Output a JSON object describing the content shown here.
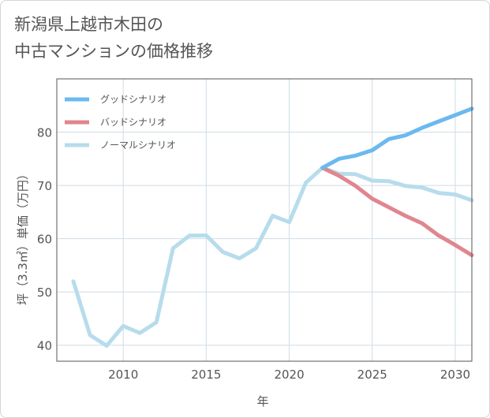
{
  "title": {
    "line1": "新潟県上越市木田の",
    "line2": "中古マンションの価格推移"
  },
  "chart_data": {
    "type": "line",
    "xlabel": "年",
    "ylabel": "坪（3.3㎡）単価（万円）",
    "xlim": [
      2006,
      2031
    ],
    "ylim": [
      37,
      90
    ],
    "x_ticks": [
      2010,
      2015,
      2020,
      2025,
      2030
    ],
    "y_ticks": [
      40,
      50,
      60,
      70,
      80
    ],
    "grid": true,
    "legend_position": "top-left",
    "series": [
      {
        "name": "グッドシナリオ",
        "color": "#6bb9ef",
        "x": [
          2022,
          2023,
          2024,
          2025,
          2026,
          2027,
          2028,
          2029,
          2030,
          2031
        ],
        "y": [
          73.3,
          75.0,
          75.6,
          76.6,
          78.7,
          79.4,
          80.8,
          82.0,
          83.2,
          84.4
        ]
      },
      {
        "name": "バッドシナリオ",
        "color": "#e0868f",
        "x": [
          2022,
          2023,
          2024,
          2025,
          2026,
          2027,
          2028,
          2029,
          2030,
          2031
        ],
        "y": [
          73.3,
          71.8,
          69.9,
          67.5,
          65.9,
          64.3,
          62.9,
          60.6,
          58.8,
          56.9
        ]
      },
      {
        "name": "ノーマルシナリオ",
        "color": "#b7dcec",
        "x": [
          2007,
          2008,
          2009,
          2010,
          2011,
          2012,
          2013,
          2014,
          2015,
          2016,
          2017,
          2018,
          2019,
          2020,
          2021,
          2022,
          2023,
          2024,
          2025,
          2026,
          2027,
          2028,
          2029,
          2030,
          2031
        ],
        "y": [
          52.0,
          41.9,
          39.9,
          43.6,
          42.3,
          44.3,
          58.2,
          60.6,
          60.6,
          57.5,
          56.3,
          58.2,
          64.3,
          63.1,
          70.5,
          73.3,
          72.2,
          72.1,
          70.9,
          70.8,
          69.9,
          69.6,
          68.6,
          68.3,
          67.2
        ]
      }
    ]
  }
}
